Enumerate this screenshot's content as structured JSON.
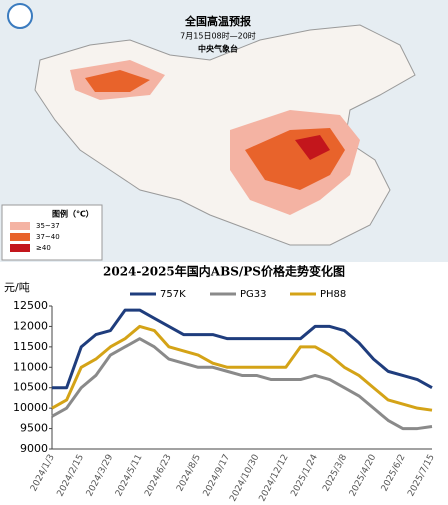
{
  "map": {
    "title": "全国高温预报",
    "time": "7月15日08时—20时",
    "issuer": "中央气象台",
    "legend": {
      "title": "图例（℃）",
      "items": [
        "35~37",
        "37~40",
        "≥40"
      ],
      "colors": [
        "#f4b3a3",
        "#e8632b",
        "#c3161c"
      ]
    }
  },
  "chart_data": {
    "type": "line",
    "title": "2024-2025年国内ABS/PS价格走势变化图",
    "y_label": "元/吨",
    "categories": [
      "2024/1/3",
      null,
      "2024/2/15",
      null,
      "2024/3/29",
      null,
      "2024/5/11",
      null,
      "2024/6/23",
      null,
      "2024/8/5",
      null,
      "2024/9/17",
      null,
      "2024/10/30",
      null,
      "2024/12/12",
      null,
      "2025/1/24",
      null,
      "2025/3/8",
      null,
      "2025/4/20",
      null,
      "2025/6/2",
      null,
      "2025/7/15"
    ],
    "series": [
      {
        "name": "757K",
        "color": "#1f3d7d",
        "values": [
          10500,
          10500,
          11500,
          11800,
          11900,
          12400,
          12400,
          12200,
          12000,
          11800,
          11800,
          11800,
          11700,
          11700,
          11700,
          11700,
          11700,
          11700,
          12000,
          12000,
          11900,
          11600,
          11200,
          10900,
          10800,
          10700,
          10500
        ]
      },
      {
        "name": "PG33",
        "color": "#8a8a8a",
        "values": [
          9800,
          10000,
          10500,
          10800,
          11300,
          11500,
          11700,
          11500,
          11200,
          11100,
          11000,
          11000,
          10900,
          10800,
          10800,
          10700,
          10700,
          10700,
          10800,
          10700,
          10500,
          10300,
          10000,
          9700,
          9500,
          9500,
          9550
        ]
      },
      {
        "name": "PH88",
        "color": "#d4a317",
        "values": [
          10000,
          10200,
          11000,
          11200,
          11500,
          11700,
          12000,
          11900,
          11500,
          11400,
          11300,
          11100,
          11000,
          11000,
          11000,
          11000,
          11000,
          11500,
          11500,
          11300,
          11000,
          10800,
          10500,
          10200,
          10100,
          10000,
          9950
        ]
      }
    ],
    "ylim": [
      9000,
      12500
    ],
    "yticks": [
      9000,
      9500,
      10000,
      10500,
      11000,
      11500,
      12000,
      12500
    ],
    "grid": false
  }
}
